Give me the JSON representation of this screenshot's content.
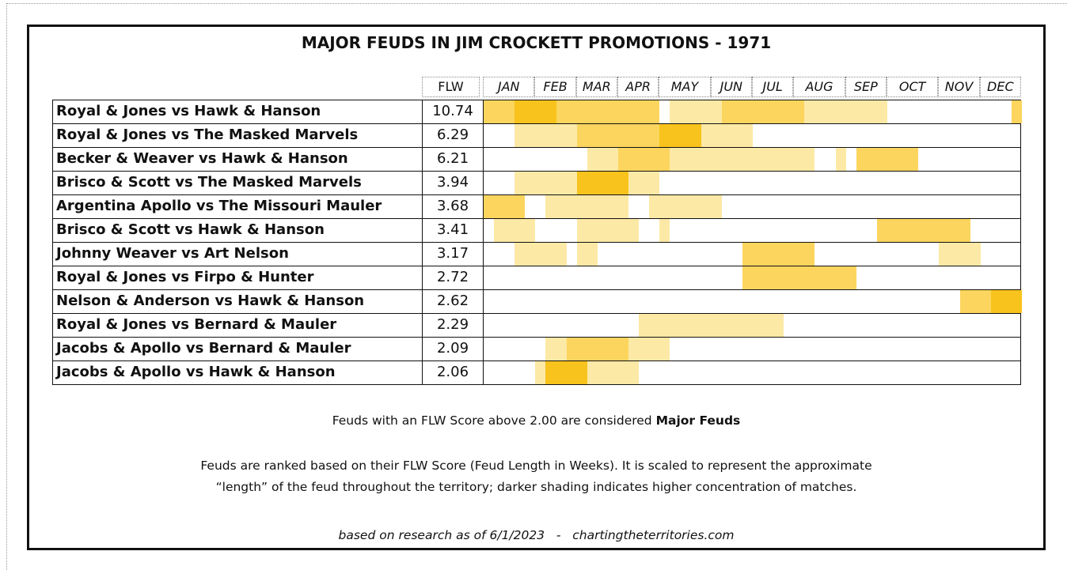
{
  "header": {
    "title": "MAJOR FEUDS IN JIM CROCKETT PROMOTIONS - 1971"
  },
  "table": {
    "score_header": "FLW",
    "months": [
      "JAN",
      "FEB",
      "MAR",
      "APR",
      "MAY",
      "JUN",
      "JUL",
      "AUG",
      "SEP",
      "OCT",
      "NOV",
      "DEC"
    ],
    "rows": [
      {
        "feud": "Royal & Jones vs Hawk & Hanson",
        "score": "10.74",
        "segments": [
          {
            "start": 0,
            "end": 16,
            "level": 2
          },
          {
            "start": 3,
            "end": 6,
            "level": 3
          },
          {
            "start": 18,
            "end": 38,
            "level": 1
          },
          {
            "start": 23,
            "end": 30,
            "level": 2
          },
          {
            "start": 51,
            "end": 51,
            "level": 2
          }
        ]
      },
      {
        "feud": "Royal & Jones vs The Masked Marvels",
        "score": "6.29",
        "segments": [
          {
            "start": 3,
            "end": 25,
            "level": 1
          },
          {
            "start": 9,
            "end": 20,
            "level": 2
          },
          {
            "start": 17,
            "end": 20,
            "level": 3
          }
        ]
      },
      {
        "feud": "Becker & Weaver vs Hawk & Hanson",
        "score": "6.21",
        "segments": [
          {
            "start": 10,
            "end": 31,
            "level": 1
          },
          {
            "start": 13,
            "end": 17,
            "level": 2
          },
          {
            "start": 34,
            "end": 34,
            "level": 1
          },
          {
            "start": 36,
            "end": 41,
            "level": 2
          }
        ]
      },
      {
        "feud": "Brisco & Scott vs The Masked Marvels",
        "score": "3.94",
        "segments": [
          {
            "start": 3,
            "end": 16,
            "level": 1
          },
          {
            "start": 9,
            "end": 13,
            "level": 3
          }
        ]
      },
      {
        "feud": "Argentina Apollo vs The Missouri Mauler",
        "score": "3.68",
        "segments": [
          {
            "start": 0,
            "end": 3,
            "level": 2
          },
          {
            "start": 6,
            "end": 13,
            "level": 1
          },
          {
            "start": 16,
            "end": 22,
            "level": 1
          }
        ]
      },
      {
        "feud": "Brisco & Scott vs Hawk & Hanson",
        "score": "3.41",
        "segments": [
          {
            "start": 1,
            "end": 4,
            "level": 1
          },
          {
            "start": 9,
            "end": 14,
            "level": 1
          },
          {
            "start": 17,
            "end": 17,
            "level": 1
          },
          {
            "start": 38,
            "end": 46,
            "level": 2
          }
        ]
      },
      {
        "feud": "Johnny Weaver vs Art Nelson",
        "score": "3.17",
        "segments": [
          {
            "start": 3,
            "end": 7,
            "level": 1
          },
          {
            "start": 9,
            "end": 10,
            "level": 1
          },
          {
            "start": 25,
            "end": 31,
            "level": 2
          },
          {
            "start": 44,
            "end": 47,
            "level": 1
          }
        ]
      },
      {
        "feud": "Royal & Jones vs Firpo & Hunter",
        "score": "2.72",
        "segments": [
          {
            "start": 25,
            "end": 35,
            "level": 2
          }
        ]
      },
      {
        "feud": "Nelson & Anderson vs Hawk & Hanson",
        "score": "2.62",
        "segments": [
          {
            "start": 46,
            "end": 51,
            "level": 2
          },
          {
            "start": 49,
            "end": 51,
            "level": 3
          }
        ]
      },
      {
        "feud": "Royal & Jones vs Bernard & Mauler",
        "score": "2.29",
        "segments": [
          {
            "start": 15,
            "end": 28,
            "level": 1
          }
        ]
      },
      {
        "feud": "Jacobs & Apollo vs Bernard & Mauler",
        "score": "2.09",
        "segments": [
          {
            "start": 6,
            "end": 17,
            "level": 1
          },
          {
            "start": 8,
            "end": 13,
            "level": 2
          }
        ]
      },
      {
        "feud": "Jacobs & Apollo vs Hawk & Hanson",
        "score": "2.06",
        "segments": [
          {
            "start": 5,
            "end": 14,
            "level": 1
          },
          {
            "start": 6,
            "end": 9,
            "level": 3
          }
        ]
      }
    ]
  },
  "notes": {
    "major_prefix": "Feuds with an FLW Score above 2.00 are considered ",
    "major_bold": "Major Feuds",
    "line1": "Feuds are ranked based on their FLW Score (Feud Length in Weeks). It is scaled to represent the approximate",
    "line2": "“length” of the feud throughout the territory; darker shading indicates higher concentration of matches.",
    "source": "based on research as of 6/1/2023   -   chartingtheterritories.com"
  }
}
